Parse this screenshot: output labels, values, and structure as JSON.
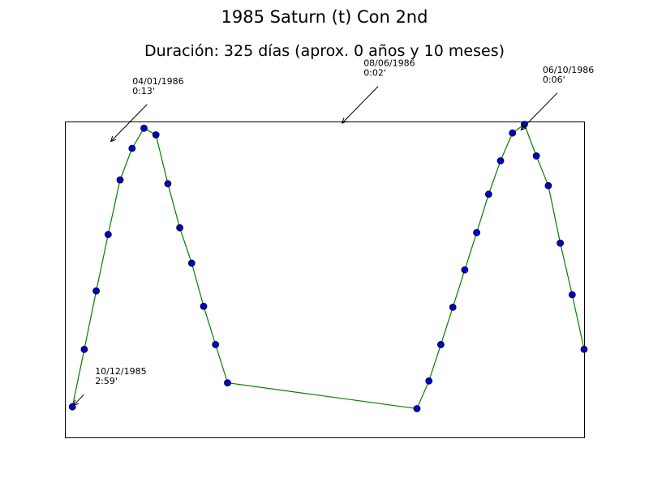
{
  "chart_data": {
    "type": "line",
    "title": "1985 Saturn (t) Con 2nd",
    "subtitle": "Duración: 325 días (aprox. 0 años y 10 meses)",
    "xlabel": "",
    "ylabel": "",
    "grid": false,
    "legend": "none",
    "x_range": [
      "1985-12-05",
      "1986-11-18"
    ],
    "y_range": [
      0.0,
      3.3
    ],
    "series": [
      {
        "line_color": "#008000",
        "marker_color": "#0000cc",
        "points": [
          {
            "x": "1985-12-10",
            "y": 2.98
          },
          {
            "x": "1985-12-18",
            "y": 2.38
          },
          {
            "x": "1985-12-26",
            "y": 1.77
          },
          {
            "x": "1986-01-03",
            "y": 1.18
          },
          {
            "x": "1986-01-11",
            "y": 0.61
          },
          {
            "x": "1986-01-19",
            "y": 0.28
          },
          {
            "x": "1986-01-27",
            "y": 0.07
          },
          {
            "x": "1986-02-04",
            "y": 0.14
          },
          {
            "x": "1986-02-12",
            "y": 0.65
          },
          {
            "x": "1986-02-20",
            "y": 1.11
          },
          {
            "x": "1986-02-28",
            "y": 1.48
          },
          {
            "x": "1986-03-08",
            "y": 1.93
          },
          {
            "x": "1986-03-16",
            "y": 2.33
          },
          {
            "x": "1986-03-24",
            "y": 2.73
          },
          {
            "x": "1986-07-29",
            "y": 3.0
          },
          {
            "x": "1986-08-06",
            "y": 2.71
          },
          {
            "x": "1986-08-14",
            "y": 2.33
          },
          {
            "x": "1986-08-22",
            "y": 1.94
          },
          {
            "x": "1986-08-30",
            "y": 1.55
          },
          {
            "x": "1986-09-07",
            "y": 1.16
          },
          {
            "x": "1986-09-15",
            "y": 0.76
          },
          {
            "x": "1986-09-23",
            "y": 0.41
          },
          {
            "x": "1986-10-01",
            "y": 0.12
          },
          {
            "x": "1986-10-09",
            "y": 0.03
          },
          {
            "x": "1986-10-17",
            "y": 0.36
          },
          {
            "x": "1986-10-25",
            "y": 0.67
          },
          {
            "x": "1986-11-02",
            "y": 1.27
          },
          {
            "x": "1986-11-10",
            "y": 1.81
          },
          {
            "x": "1986-11-18",
            "y": 2.38
          }
        ]
      }
    ],
    "annotations": [
      {
        "date_label": "10/12/1985",
        "value_label": "2:59'",
        "x": "1985-12-10",
        "y": 2.98,
        "text_pos": "below-right"
      },
      {
        "date_label": "04/01/1986",
        "value_label": "0:13'",
        "x": "1986-01-04",
        "y": 0.22,
        "text_pos": "above-right"
      },
      {
        "date_label": "08/06/1986",
        "value_label": "0:02'",
        "x": "1986-06-08",
        "y": 0.03,
        "text_pos": "above-right"
      },
      {
        "date_label": "06/10/1986",
        "value_label": "0:06'",
        "x": "1986-10-06",
        "y": 0.1,
        "text_pos": "above-right"
      }
    ]
  }
}
